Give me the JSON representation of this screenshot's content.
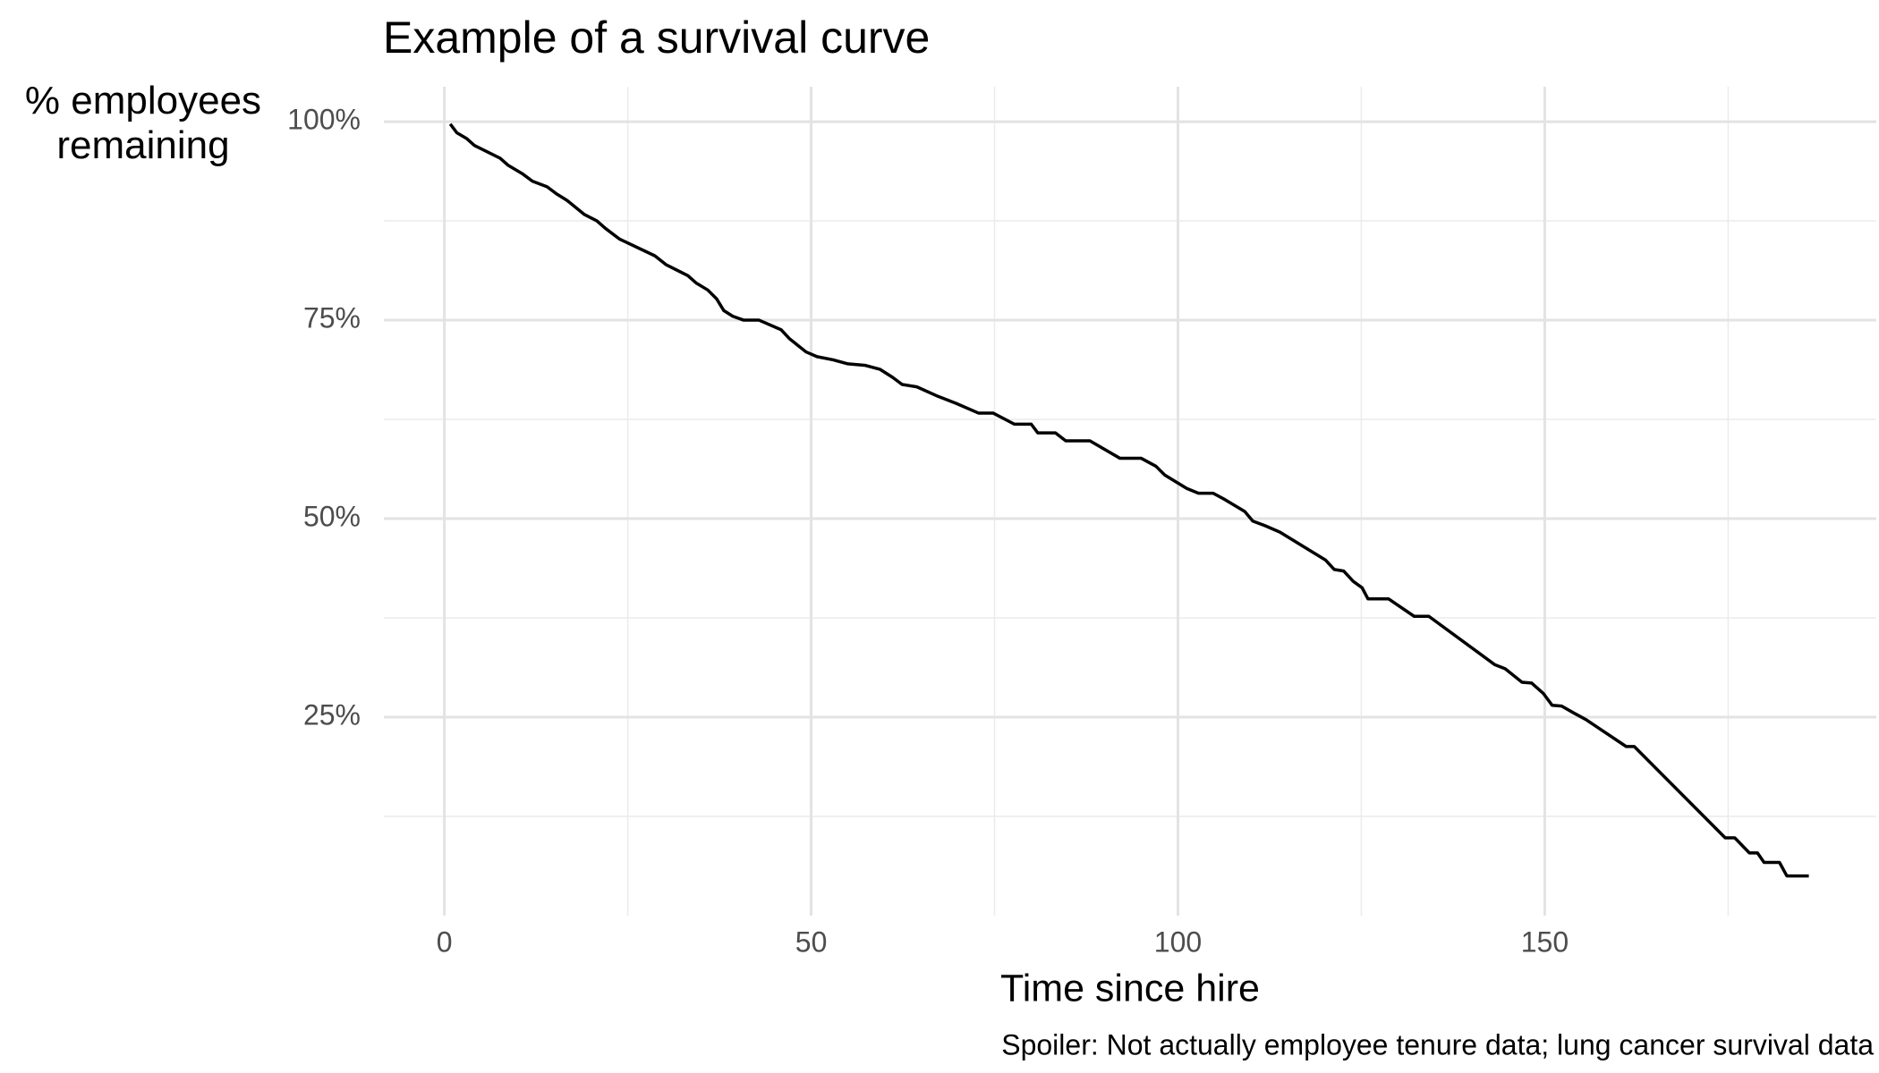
{
  "chart_data": {
    "type": "line",
    "title": "Example of a survival curve",
    "x_label": "Time since hire",
    "y_label": "% employees remaining",
    "caption": "Spoiler: Not actually employee tenure data; lung cancer survival data",
    "color": "#000000",
    "grid": true,
    "x": [
      0.8,
      1.7,
      3,
      4.1,
      7.6,
      8.7,
      10.7,
      12,
      14,
      15.3,
      16.7,
      19.1,
      20.8,
      21.9,
      23.9,
      28.7,
      30.2,
      33.2,
      34.3,
      35.9,
      37.1,
      38.1,
      39.3,
      40.8,
      42.9,
      45.9,
      47,
      49.3,
      50.8,
      53,
      55,
      57.4,
      59.4,
      61.1,
      62.4,
      64.4,
      67.3,
      69.8,
      72.8,
      74.8,
      77.7,
      80,
      80.9,
      83.3,
      84.7,
      88,
      92.1,
      95,
      97,
      98.2,
      101.2,
      102.8,
      104.8,
      106.4,
      109.1,
      110.2,
      111.9,
      113.9,
      120.1,
      121.3,
      122.6,
      123.9,
      125.1,
      125.9,
      128.7,
      132.2,
      134.2,
      143.2,
      144.6,
      146.9,
      148.2,
      149.8,
      151,
      152.3,
      154,
      155.6,
      156.9,
      161.1,
      162.2,
      174.6,
      175.9,
      177.9,
      179,
      179.9,
      182,
      183,
      186
    ],
    "values": [
      99.7,
      98.6,
      97.9,
      97,
      95.4,
      94.5,
      93.4,
      92.5,
      91.8,
      90.9,
      90.1,
      88.3,
      87.5,
      86.6,
      85.2,
      83.1,
      82,
      80.6,
      79.7,
      78.8,
      77.7,
      76.2,
      75.5,
      75,
      75,
      73.8,
      72.7,
      71,
      70.4,
      70,
      69.5,
      69.3,
      68.8,
      67.8,
      66.9,
      66.6,
      65.4,
      64.5,
      63.3,
      63.3,
      61.9,
      61.9,
      60.8,
      60.8,
      59.8,
      59.8,
      57.6,
      57.6,
      56.6,
      55.5,
      53.8,
      53.2,
      53.2,
      52.4,
      50.9,
      49.7,
      49.1,
      48.3,
      44.8,
      43.6,
      43.4,
      42.1,
      41.3,
      39.9,
      39.9,
      37.7,
      37.7,
      31.6,
      31.1,
      29.4,
      29.3,
      28,
      26.5,
      26.4,
      25.5,
      24.7,
      23.9,
      21.3,
      21.3,
      9.8,
      9.8,
      7.9,
      7.9,
      6.7,
      6.7,
      5,
      5
    ],
    "xlim": [
      -8.25,
      195.2
    ],
    "ylim": [
      0,
      104.4
    ],
    "xticks": [
      0,
      50,
      100,
      150
    ],
    "yticks": [
      {
        "value": 25,
        "label": "25%"
      },
      {
        "value": 50,
        "label": "50%"
      },
      {
        "value": 75,
        "label": "75%"
      },
      {
        "value": 100,
        "label": "100%"
      }
    ],
    "x_minor_ticks": [
      25,
      75,
      125,
      175
    ],
    "y_minor_ticks": [
      12.5,
      37.5,
      62.5,
      87.5
    ]
  }
}
